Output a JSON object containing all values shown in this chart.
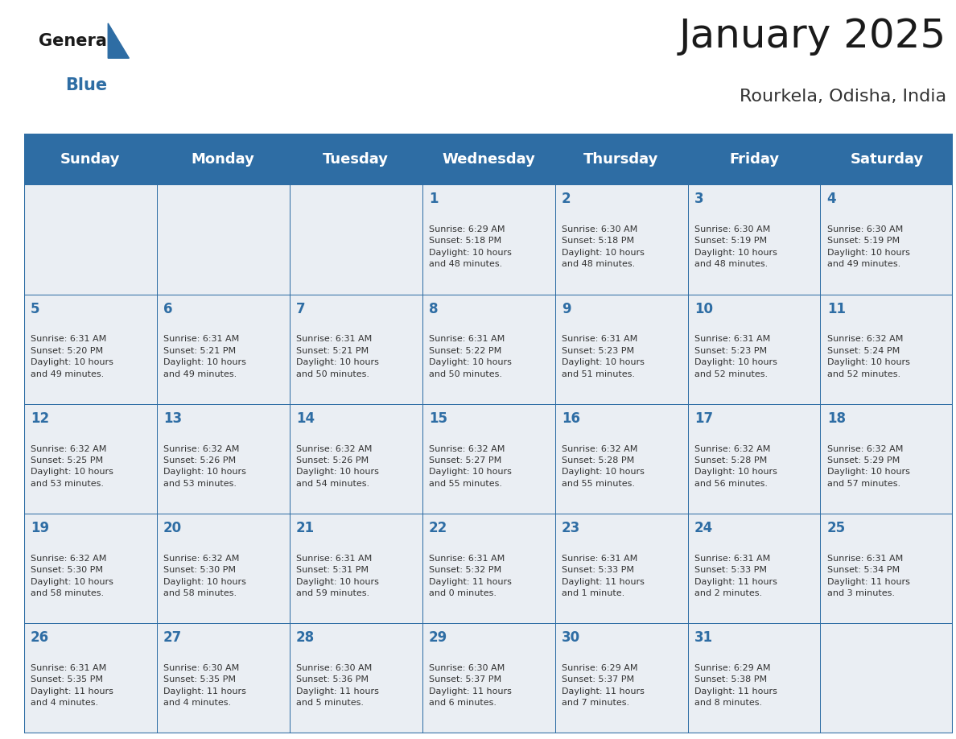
{
  "title": "January 2025",
  "subtitle": "Rourkela, Odisha, India",
  "header_bg_color": "#2E6DA4",
  "header_text_color": "#FFFFFF",
  "day_names": [
    "Sunday",
    "Monday",
    "Tuesday",
    "Wednesday",
    "Thursday",
    "Friday",
    "Saturday"
  ],
  "cell_bg_color": "#EAEEF3",
  "grid_line_color": "#2E6DA4",
  "date_text_color": "#2E6DA4",
  "info_text_color": "#333333",
  "weeks": [
    [
      {
        "day": "",
        "info": ""
      },
      {
        "day": "",
        "info": ""
      },
      {
        "day": "",
        "info": ""
      },
      {
        "day": "1",
        "info": "Sunrise: 6:29 AM\nSunset: 5:18 PM\nDaylight: 10 hours\nand 48 minutes."
      },
      {
        "day": "2",
        "info": "Sunrise: 6:30 AM\nSunset: 5:18 PM\nDaylight: 10 hours\nand 48 minutes."
      },
      {
        "day": "3",
        "info": "Sunrise: 6:30 AM\nSunset: 5:19 PM\nDaylight: 10 hours\nand 48 minutes."
      },
      {
        "day": "4",
        "info": "Sunrise: 6:30 AM\nSunset: 5:19 PM\nDaylight: 10 hours\nand 49 minutes."
      }
    ],
    [
      {
        "day": "5",
        "info": "Sunrise: 6:31 AM\nSunset: 5:20 PM\nDaylight: 10 hours\nand 49 minutes."
      },
      {
        "day": "6",
        "info": "Sunrise: 6:31 AM\nSunset: 5:21 PM\nDaylight: 10 hours\nand 49 minutes."
      },
      {
        "day": "7",
        "info": "Sunrise: 6:31 AM\nSunset: 5:21 PM\nDaylight: 10 hours\nand 50 minutes."
      },
      {
        "day": "8",
        "info": "Sunrise: 6:31 AM\nSunset: 5:22 PM\nDaylight: 10 hours\nand 50 minutes."
      },
      {
        "day": "9",
        "info": "Sunrise: 6:31 AM\nSunset: 5:23 PM\nDaylight: 10 hours\nand 51 minutes."
      },
      {
        "day": "10",
        "info": "Sunrise: 6:31 AM\nSunset: 5:23 PM\nDaylight: 10 hours\nand 52 minutes."
      },
      {
        "day": "11",
        "info": "Sunrise: 6:32 AM\nSunset: 5:24 PM\nDaylight: 10 hours\nand 52 minutes."
      }
    ],
    [
      {
        "day": "12",
        "info": "Sunrise: 6:32 AM\nSunset: 5:25 PM\nDaylight: 10 hours\nand 53 minutes."
      },
      {
        "day": "13",
        "info": "Sunrise: 6:32 AM\nSunset: 5:26 PM\nDaylight: 10 hours\nand 53 minutes."
      },
      {
        "day": "14",
        "info": "Sunrise: 6:32 AM\nSunset: 5:26 PM\nDaylight: 10 hours\nand 54 minutes."
      },
      {
        "day": "15",
        "info": "Sunrise: 6:32 AM\nSunset: 5:27 PM\nDaylight: 10 hours\nand 55 minutes."
      },
      {
        "day": "16",
        "info": "Sunrise: 6:32 AM\nSunset: 5:28 PM\nDaylight: 10 hours\nand 55 minutes."
      },
      {
        "day": "17",
        "info": "Sunrise: 6:32 AM\nSunset: 5:28 PM\nDaylight: 10 hours\nand 56 minutes."
      },
      {
        "day": "18",
        "info": "Sunrise: 6:32 AM\nSunset: 5:29 PM\nDaylight: 10 hours\nand 57 minutes."
      }
    ],
    [
      {
        "day": "19",
        "info": "Sunrise: 6:32 AM\nSunset: 5:30 PM\nDaylight: 10 hours\nand 58 minutes."
      },
      {
        "day": "20",
        "info": "Sunrise: 6:32 AM\nSunset: 5:30 PM\nDaylight: 10 hours\nand 58 minutes."
      },
      {
        "day": "21",
        "info": "Sunrise: 6:31 AM\nSunset: 5:31 PM\nDaylight: 10 hours\nand 59 minutes."
      },
      {
        "day": "22",
        "info": "Sunrise: 6:31 AM\nSunset: 5:32 PM\nDaylight: 11 hours\nand 0 minutes."
      },
      {
        "day": "23",
        "info": "Sunrise: 6:31 AM\nSunset: 5:33 PM\nDaylight: 11 hours\nand 1 minute."
      },
      {
        "day": "24",
        "info": "Sunrise: 6:31 AM\nSunset: 5:33 PM\nDaylight: 11 hours\nand 2 minutes."
      },
      {
        "day": "25",
        "info": "Sunrise: 6:31 AM\nSunset: 5:34 PM\nDaylight: 11 hours\nand 3 minutes."
      }
    ],
    [
      {
        "day": "26",
        "info": "Sunrise: 6:31 AM\nSunset: 5:35 PM\nDaylight: 11 hours\nand 4 minutes."
      },
      {
        "day": "27",
        "info": "Sunrise: 6:30 AM\nSunset: 5:35 PM\nDaylight: 11 hours\nand 4 minutes."
      },
      {
        "day": "28",
        "info": "Sunrise: 6:30 AM\nSunset: 5:36 PM\nDaylight: 11 hours\nand 5 minutes."
      },
      {
        "day": "29",
        "info": "Sunrise: 6:30 AM\nSunset: 5:37 PM\nDaylight: 11 hours\nand 6 minutes."
      },
      {
        "day": "30",
        "info": "Sunrise: 6:29 AM\nSunset: 5:37 PM\nDaylight: 11 hours\nand 7 minutes."
      },
      {
        "day": "31",
        "info": "Sunrise: 6:29 AM\nSunset: 5:38 PM\nDaylight: 11 hours\nand 8 minutes."
      },
      {
        "day": "",
        "info": ""
      }
    ]
  ]
}
